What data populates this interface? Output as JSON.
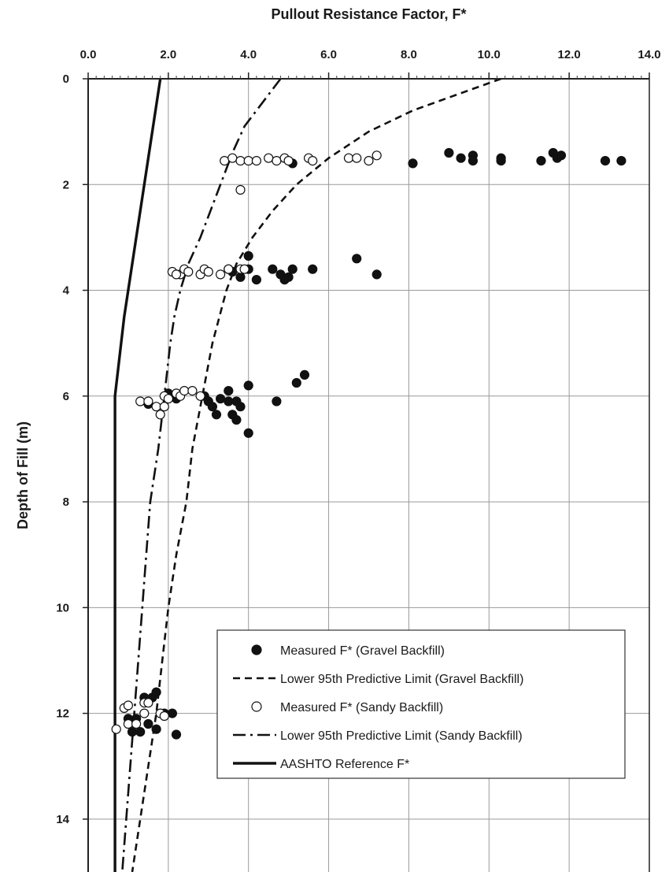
{
  "chart_data": {
    "type": "scatter",
    "title": "",
    "xlabel": "Pullout Resistance Factor, F*",
    "ylabel": "Depth of Fill (m)",
    "x_axis_position": "top",
    "y_axis_inverted": true,
    "xlim": [
      0,
      14
    ],
    "ylim": [
      0,
      15
    ],
    "x_ticks": [
      "0.0",
      "2.0",
      "4.0",
      "6.0",
      "8.0",
      "10.0",
      "12.0",
      "14.0"
    ],
    "y_ticks": [
      "0",
      "2",
      "4",
      "6",
      "8",
      "10",
      "12",
      "14"
    ],
    "grid": true,
    "legend_position": "bottom-right",
    "legend": [
      {
        "name": "Measured F* (Gravel Backfill)",
        "marker": "filled-circle"
      },
      {
        "name": "Lower 95th Predictive Limit (Gravel Backfill)",
        "line": "dashed"
      },
      {
        "name": "Measured F* (Sandy Backfill)",
        "marker": "open-circle"
      },
      {
        "name": "Lower 95th Predictive Limit (Sandy Backfill)",
        "line": "dash-dot"
      },
      {
        "name": "AASHTO Reference F*",
        "line": "solid"
      }
    ],
    "series": [
      {
        "name": "Measured F* (Gravel Backfill)",
        "marker": "filled-circle",
        "points": [
          [
            5.1,
            1.6
          ],
          [
            8.1,
            1.6
          ],
          [
            9.0,
            1.4
          ],
          [
            9.3,
            1.5
          ],
          [
            9.6,
            1.45
          ],
          [
            9.6,
            1.55
          ],
          [
            10.3,
            1.5
          ],
          [
            10.3,
            1.55
          ],
          [
            11.3,
            1.55
          ],
          [
            11.6,
            1.4
          ],
          [
            11.7,
            1.5
          ],
          [
            11.8,
            1.45
          ],
          [
            12.9,
            1.55
          ],
          [
            13.3,
            1.55
          ],
          [
            4.0,
            3.35
          ],
          [
            3.5,
            3.6
          ],
          [
            3.6,
            3.65
          ],
          [
            4.0,
            3.6
          ],
          [
            3.8,
            3.75
          ],
          [
            4.2,
            3.8
          ],
          [
            4.6,
            3.6
          ],
          [
            4.8,
            3.7
          ],
          [
            4.9,
            3.8
          ],
          [
            5.0,
            3.75
          ],
          [
            5.1,
            3.6
          ],
          [
            5.6,
            3.6
          ],
          [
            6.7,
            3.4
          ],
          [
            7.2,
            3.7
          ],
          [
            2.0,
            5.95
          ],
          [
            2.2,
            6.05
          ],
          [
            2.9,
            6.0
          ],
          [
            3.0,
            6.1
          ],
          [
            3.1,
            6.2
          ],
          [
            3.2,
            6.35
          ],
          [
            3.3,
            6.05
          ],
          [
            3.5,
            5.9
          ],
          [
            3.5,
            6.1
          ],
          [
            3.7,
            6.1
          ],
          [
            3.8,
            6.2
          ],
          [
            3.7,
            6.45
          ],
          [
            3.6,
            6.35
          ],
          [
            4.0,
            5.8
          ],
          [
            4.0,
            6.7
          ],
          [
            4.7,
            6.1
          ],
          [
            5.2,
            5.75
          ],
          [
            5.4,
            5.6
          ],
          [
            1.5,
            6.15
          ],
          [
            1.2,
            12.1
          ],
          [
            1.4,
            11.7
          ],
          [
            1.7,
            11.6
          ],
          [
            1.6,
            11.7
          ],
          [
            1.9,
            12.0
          ],
          [
            2.1,
            12.0
          ],
          [
            1.5,
            12.2
          ],
          [
            1.3,
            12.35
          ],
          [
            1.7,
            12.3
          ],
          [
            2.2,
            12.4
          ],
          [
            1.0,
            12.1
          ],
          [
            1.1,
            12.35
          ]
        ]
      },
      {
        "name": "Measured F* (Sandy Backfill)",
        "marker": "open-circle",
        "points": [
          [
            3.4,
            1.55
          ],
          [
            3.6,
            1.5
          ],
          [
            3.8,
            1.55
          ],
          [
            4.0,
            1.55
          ],
          [
            4.2,
            1.55
          ],
          [
            4.5,
            1.5
          ],
          [
            4.7,
            1.55
          ],
          [
            4.9,
            1.5
          ],
          [
            5.0,
            1.55
          ],
          [
            5.5,
            1.5
          ],
          [
            5.6,
            1.55
          ],
          [
            6.5,
            1.5
          ],
          [
            6.7,
            1.5
          ],
          [
            7.0,
            1.55
          ],
          [
            7.2,
            1.45
          ],
          [
            3.8,
            2.1
          ],
          [
            2.1,
            3.65
          ],
          [
            2.3,
            3.7
          ],
          [
            2.4,
            3.6
          ],
          [
            2.5,
            3.65
          ],
          [
            2.8,
            3.7
          ],
          [
            2.9,
            3.6
          ],
          [
            3.0,
            3.65
          ],
          [
            3.3,
            3.7
          ],
          [
            3.5,
            3.6
          ],
          [
            3.8,
            3.6
          ],
          [
            3.9,
            3.6
          ],
          [
            2.2,
            3.7
          ],
          [
            1.3,
            6.1
          ],
          [
            1.5,
            6.1
          ],
          [
            1.7,
            6.2
          ],
          [
            1.8,
            6.35
          ],
          [
            1.9,
            6.0
          ],
          [
            2.0,
            6.05
          ],
          [
            2.2,
            5.95
          ],
          [
            2.3,
            6.0
          ],
          [
            2.4,
            5.9
          ],
          [
            2.6,
            5.9
          ],
          [
            2.8,
            6.0
          ],
          [
            1.9,
            6.2
          ],
          [
            0.7,
            12.3
          ],
          [
            0.9,
            11.9
          ],
          [
            1.0,
            11.85
          ],
          [
            1.0,
            12.2
          ],
          [
            1.2,
            12.2
          ],
          [
            1.4,
            11.8
          ],
          [
            1.5,
            11.8
          ],
          [
            1.4,
            12.0
          ],
          [
            1.8,
            12.0
          ],
          [
            1.9,
            12.05
          ]
        ]
      },
      {
        "name": "Lower 95th Predictive Limit (Gravel Backfill)",
        "line": "dashed",
        "curve": [
          [
            10.3,
            0
          ],
          [
            9.2,
            0.3
          ],
          [
            8.1,
            0.6
          ],
          [
            7.0,
            1.0
          ],
          [
            6.0,
            1.5
          ],
          [
            5.2,
            2.0
          ],
          [
            4.6,
            2.5
          ],
          [
            4.1,
            3.0
          ],
          [
            3.7,
            3.5
          ],
          [
            3.45,
            4.0
          ],
          [
            3.1,
            5.0
          ],
          [
            2.85,
            6.0
          ],
          [
            2.6,
            7.0
          ],
          [
            2.45,
            8.0
          ],
          [
            2.2,
            9.0
          ],
          [
            2.0,
            10.0
          ],
          [
            1.85,
            11.0
          ],
          [
            1.7,
            12.0
          ],
          [
            1.5,
            13.0
          ],
          [
            1.3,
            14.0
          ],
          [
            1.1,
            15.0
          ]
        ]
      },
      {
        "name": "Lower 95th Predictive Limit (Sandy Backfill)",
        "line": "dash-dot",
        "curve": [
          [
            4.8,
            0
          ],
          [
            4.5,
            0.3
          ],
          [
            4.2,
            0.6
          ],
          [
            3.9,
            0.9
          ],
          [
            3.6,
            1.4
          ],
          [
            3.4,
            1.8
          ],
          [
            3.1,
            2.4
          ],
          [
            2.8,
            3.0
          ],
          [
            2.5,
            3.5
          ],
          [
            2.3,
            4.0
          ],
          [
            2.15,
            4.5
          ],
          [
            2.05,
            5.0
          ],
          [
            1.9,
            6.0
          ],
          [
            1.75,
            7.0
          ],
          [
            1.55,
            8.0
          ],
          [
            1.45,
            9.0
          ],
          [
            1.35,
            10.0
          ],
          [
            1.25,
            11.0
          ],
          [
            1.15,
            12.0
          ],
          [
            1.05,
            13.0
          ],
          [
            0.95,
            14.0
          ],
          [
            0.85,
            15.0
          ]
        ]
      },
      {
        "name": "AASHTO Reference F*",
        "line": "solid",
        "curve": [
          [
            1.8,
            0
          ],
          [
            1.5,
            1.5
          ],
          [
            1.2,
            3.0
          ],
          [
            0.9,
            4.5
          ],
          [
            0.67,
            6.0
          ],
          [
            0.67,
            15.0
          ]
        ]
      }
    ]
  }
}
